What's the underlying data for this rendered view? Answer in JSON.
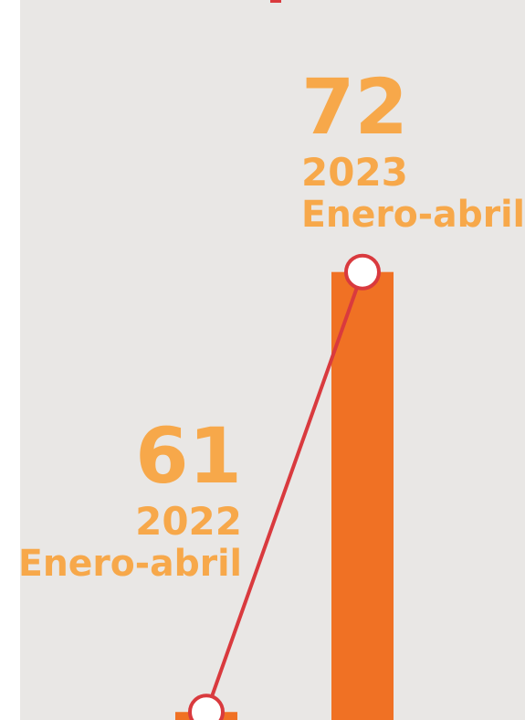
{
  "chart_data": {
    "type": "bar",
    "categories": [
      "2022",
      "2023"
    ],
    "periods": [
      "Enero-abril",
      "Enero-abril"
    ],
    "values": [
      61,
      72
    ],
    "color": "#f07124",
    "label_color": "#f7a84a",
    "line_color": "#d93a3e",
    "ylim": [
      60.8,
      78.8
    ]
  }
}
